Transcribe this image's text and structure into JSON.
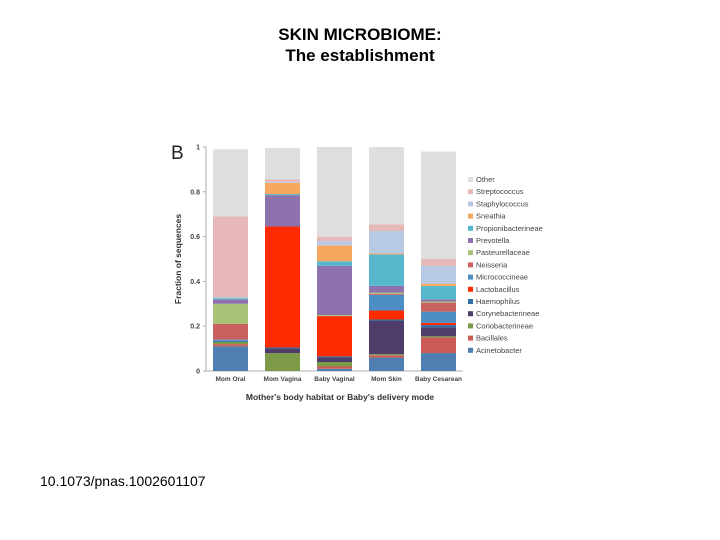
{
  "slide": {
    "title_line1": "SKIN MICROBIOME:",
    "title_line2": "The establishment",
    "doi": "10.1073/pnas.1002601107"
  },
  "chart_data": {
    "type": "bar",
    "stacked": true,
    "panel_label": "B",
    "categories": [
      "Mom Oral",
      "Mom Vagina",
      "Baby Vaginal",
      "Mom Skin",
      "Baby Cesarean"
    ],
    "xlabel": "Mother's body habitat or Baby's delivery mode",
    "ylabel": "Fraction of sequences",
    "ylim": [
      0,
      1
    ],
    "yticks": [
      "0",
      "0.2",
      "0.4",
      "0.6",
      "0.8",
      "1"
    ],
    "grid": false,
    "legend_position": "right",
    "series": [
      {
        "name": "Acinetobacter",
        "color": "#4f7fb0",
        "values": [
          0.11,
          0,
          0.01,
          0.06,
          0.08
        ]
      },
      {
        "name": "Bacillales",
        "color": "#cd5b55",
        "values": [
          0.01,
          0,
          0.01,
          0.01,
          0.07
        ]
      },
      {
        "name": "Coriobacterineae",
        "color": "#7d9a48",
        "values": [
          0.01,
          0.08,
          0.02,
          0.005,
          0.005
        ]
      },
      {
        "name": "Corynebacterineae",
        "color": "#4e3d6a",
        "values": [
          0,
          0.02,
          0.02,
          0.15,
          0.04
        ]
      },
      {
        "name": "Haemophilus",
        "color": "#2f6da4",
        "values": [
          0.005,
          0.005,
          0.005,
          0.005,
          0.01
        ]
      },
      {
        "name": "Lactobacillus",
        "color": "#ff2a00",
        "values": [
          0,
          0.54,
          0.18,
          0.04,
          0.01
        ]
      },
      {
        "name": "Micrococcineae",
        "color": "#4d8ec5",
        "values": [
          0.005,
          0,
          0,
          0.07,
          0.05
        ]
      },
      {
        "name": "Neisseria",
        "color": "#c9615f",
        "values": [
          0.07,
          0,
          0,
          0.005,
          0.04
        ]
      },
      {
        "name": "Pasteurellaceae",
        "color": "#a9c278",
        "values": [
          0.09,
          0,
          0.005,
          0.005,
          0.005
        ]
      },
      {
        "name": "Prevotella",
        "color": "#8d72ad",
        "values": [
          0.02,
          0.14,
          0.22,
          0.03,
          0.01
        ]
      },
      {
        "name": "Propionibacterineae",
        "color": "#56b7cd",
        "values": [
          0.005,
          0.005,
          0.02,
          0.14,
          0.06
        ]
      },
      {
        "name": "Sneathia",
        "color": "#f7a85e",
        "values": [
          0,
          0.05,
          0.07,
          0.005,
          0.01
        ]
      },
      {
        "name": "Staphylococcus",
        "color": "#b8c9e3",
        "values": [
          0.005,
          0.005,
          0.02,
          0.1,
          0.08
        ]
      },
      {
        "name": "Streptococcus",
        "color": "#e6b9b8",
        "values": [
          0.36,
          0.01,
          0.02,
          0.03,
          0.03
        ]
      },
      {
        "name": "Other",
        "color": "#dedede",
        "values": [
          0.3,
          0.14,
          0.41,
          0.36,
          0.48
        ]
      }
    ]
  }
}
